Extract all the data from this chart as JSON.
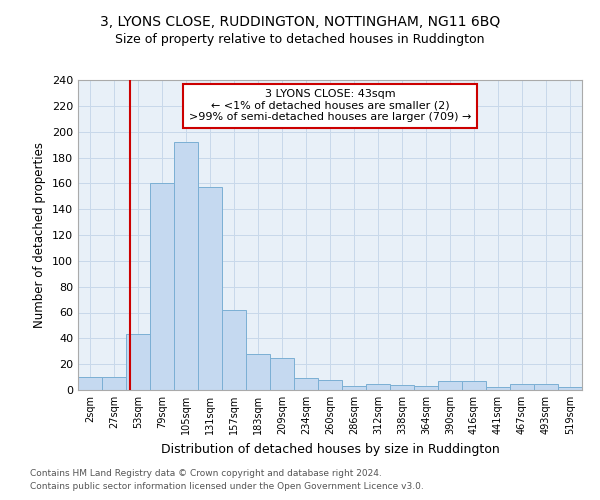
{
  "title": "3, LYONS CLOSE, RUDDINGTON, NOTTINGHAM, NG11 6BQ",
  "subtitle": "Size of property relative to detached houses in Ruddington",
  "xlabel": "Distribution of detached houses by size in Ruddington",
  "ylabel": "Number of detached properties",
  "bar_color": "#c5d9f0",
  "bar_edge_color": "#7bafd4",
  "grid_color": "#c8d8ea",
  "bg_color": "#e8f0f8",
  "categories": [
    "2sqm",
    "27sqm",
    "53sqm",
    "79sqm",
    "105sqm",
    "131sqm",
    "157sqm",
    "183sqm",
    "209sqm",
    "234sqm",
    "260sqm",
    "286sqm",
    "312sqm",
    "338sqm",
    "364sqm",
    "390sqm",
    "416sqm",
    "441sqm",
    "467sqm",
    "493sqm",
    "519sqm"
  ],
  "values": [
    10,
    10,
    43,
    160,
    192,
    157,
    62,
    28,
    25,
    9,
    8,
    3,
    5,
    4,
    3,
    7,
    7,
    2,
    5,
    5,
    2
  ],
  "property_line_label": "3 LYONS CLOSE: 43sqm",
  "annotation_line1": "← <1% of detached houses are smaller (2)",
  "annotation_line2": ">99% of semi-detached houses are larger (709) →",
  "annotation_box_color": "#cc0000",
  "red_line_index": 1.65,
  "ylim": [
    0,
    240
  ],
  "yticks": [
    0,
    20,
    40,
    60,
    80,
    100,
    120,
    140,
    160,
    180,
    200,
    220,
    240
  ],
  "footnote1": "Contains HM Land Registry data © Crown copyright and database right 2024.",
  "footnote2": "Contains public sector information licensed under the Open Government Licence v3.0."
}
